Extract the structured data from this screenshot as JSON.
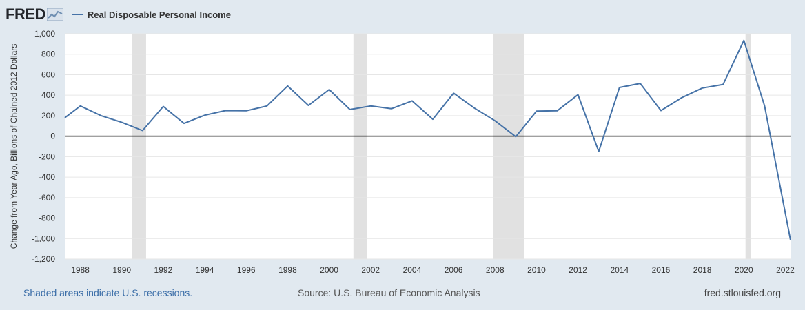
{
  "header": {
    "logo_text": "FRED",
    "legend_label": "Real Disposable Personal Income"
  },
  "footer": {
    "recession_note": "Shaded areas indicate U.S. recessions.",
    "source": "Source: U.S. Bureau of Economic Analysis",
    "website": "fred.stlouisfed.org"
  },
  "colors": {
    "series": "#4572a7",
    "recession": "#e1e1e1",
    "background": "#e1e9f0",
    "plot": "#ffffff"
  },
  "icons": [
    "fred-graph-icon"
  ],
  "chart_data": {
    "type": "line",
    "ylabel": "Change from Year Ago, Billions of Chained 2012 Dollars",
    "ylim": [
      -1200,
      1000
    ],
    "xlim": [
      1987.25,
      2022.25
    ],
    "yticks": [
      -1200,
      -1000,
      -800,
      -600,
      -400,
      -200,
      0,
      200,
      400,
      600,
      800,
      1000
    ],
    "ytick_labels": [
      "-1,200",
      "-1,000",
      "-800",
      "-600",
      "-400",
      "-200",
      "0",
      "200",
      "400",
      "600",
      "800",
      "1,000"
    ],
    "xticks": [
      1988,
      1990,
      1992,
      1994,
      1996,
      1998,
      2000,
      2002,
      2004,
      2006,
      2008,
      2010,
      2012,
      2014,
      2016,
      2018,
      2020,
      2022
    ],
    "xtick_labels": [
      "1988",
      "1990",
      "1992",
      "1994",
      "1996",
      "1998",
      "2000",
      "2002",
      "2004",
      "2006",
      "2008",
      "2010",
      "2012",
      "2014",
      "2016",
      "2018",
      "2020",
      "2022"
    ],
    "grid": true,
    "recessions": [
      [
        1990.5,
        1991.17
      ],
      [
        2001.17,
        2001.83
      ],
      [
        2007.92,
        2009.42
      ],
      [
        2020.08,
        2020.33
      ]
    ],
    "series": [
      {
        "x": [
          1987.25,
          1988,
          1989,
          1990,
          1991,
          1992,
          1993,
          1994,
          1995,
          1996,
          1997,
          1998,
          1999,
          2000,
          2001,
          2002,
          2003,
          2004,
          2005,
          2006,
          2007,
          2008,
          2009,
          2010,
          2011,
          2012,
          2013,
          2014,
          2015,
          2016,
          2017,
          2018,
          2019,
          2020,
          2021,
          2022.25
        ],
        "values": [
          180,
          295,
          200,
          135,
          55,
          290,
          125,
          205,
          250,
          248,
          295,
          490,
          300,
          455,
          260,
          295,
          268,
          345,
          165,
          420,
          275,
          150,
          -5,
          245,
          248,
          405,
          -150,
          475,
          515,
          250,
          375,
          470,
          505,
          935,
          295,
          -1015
        ]
      }
    ]
  }
}
